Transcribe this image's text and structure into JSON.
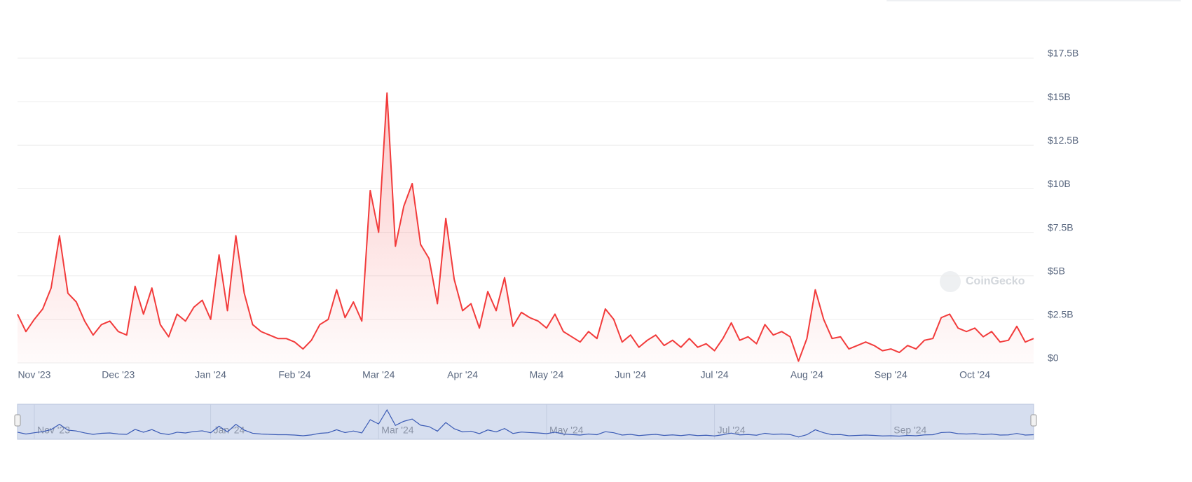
{
  "chart_data": {
    "type": "area",
    "color": "#f23b3b",
    "watermark": "CoinGecko",
    "ylim": [
      0,
      17.5
    ],
    "yticks": [
      {
        "value": 0,
        "label": "$0"
      },
      {
        "value": 2.5,
        "label": "$2.5B"
      },
      {
        "value": 5,
        "label": "$5B"
      },
      {
        "value": 7.5,
        "label": "$7.5B"
      },
      {
        "value": 10,
        "label": "$10B"
      },
      {
        "value": 12.5,
        "label": "$12.5B"
      },
      {
        "value": 15,
        "label": "$15B"
      },
      {
        "value": 17.5,
        "label": "$17.5B"
      }
    ],
    "grid": true,
    "categories": [
      null,
      null,
      "Nov '23",
      null,
      null,
      null,
      null,
      null,
      null,
      null,
      null,
      null,
      "Dec '23",
      null,
      null,
      null,
      null,
      null,
      null,
      null,
      null,
      null,
      null,
      "Jan '24",
      null,
      null,
      null,
      null,
      null,
      null,
      null,
      null,
      null,
      "Feb '24",
      null,
      null,
      null,
      null,
      null,
      null,
      null,
      null,
      null,
      "Mar '24",
      null,
      null,
      null,
      null,
      null,
      null,
      null,
      null,
      null,
      "Apr '24",
      null,
      null,
      null,
      null,
      null,
      null,
      null,
      null,
      null,
      "May '24",
      null,
      null,
      null,
      null,
      null,
      null,
      null,
      null,
      null,
      "Jun '24",
      null,
      null,
      null,
      null,
      null,
      null,
      null,
      null,
      null,
      "Jul '24",
      null,
      null,
      null,
      null,
      null,
      null,
      null,
      null,
      null,
      null,
      "Aug '24",
      null,
      null,
      null,
      null,
      null,
      null,
      null,
      null,
      null,
      "Sep '24",
      null,
      null,
      null,
      null,
      null,
      null,
      null,
      null,
      null,
      "Oct '24",
      null,
      null,
      null,
      null,
      null,
      null,
      null
    ],
    "values": [
      2.8,
      1.8,
      2.5,
      3.1,
      4.3,
      7.3,
      4.0,
      3.5,
      2.4,
      1.6,
      2.2,
      2.4,
      1.8,
      1.6,
      4.4,
      2.8,
      4.3,
      2.2,
      1.5,
      2.8,
      2.4,
      3.2,
      3.6,
      2.5,
      6.2,
      3.0,
      7.3,
      4.0,
      2.2,
      1.8,
      1.6,
      1.4,
      1.4,
      1.2,
      0.8,
      1.3,
      2.2,
      2.5,
      4.2,
      2.6,
      3.5,
      2.4,
      9.9,
      7.5,
      15.5,
      6.7,
      9.0,
      10.3,
      6.8,
      6.0,
      3.4,
      8.3,
      4.8,
      3.0,
      3.4,
      2.0,
      4.1,
      3.0,
      4.9,
      2.1,
      2.9,
      2.6,
      2.4,
      2.0,
      2.8,
      1.8,
      1.5,
      1.2,
      1.8,
      1.4,
      3.1,
      2.5,
      1.2,
      1.6,
      0.9,
      1.3,
      1.6,
      1.0,
      1.3,
      0.9,
      1.4,
      0.9,
      1.1,
      0.7,
      1.4,
      2.3,
      1.3,
      1.5,
      1.1,
      2.2,
      1.6,
      1.8,
      1.5,
      0.1,
      1.4,
      4.2,
      2.5,
      1.4,
      1.5,
      0.8,
      1.0,
      1.2,
      1.0,
      0.7,
      0.8,
      0.6,
      1.0,
      0.8,
      1.3,
      1.4,
      2.6,
      2.8,
      2.0,
      1.8,
      2.0,
      1.5,
      1.8,
      1.2,
      1.3,
      2.1,
      1.2,
      1.4
    ],
    "navigator_labels": [
      2,
      23,
      43,
      63,
      83,
      104
    ]
  }
}
